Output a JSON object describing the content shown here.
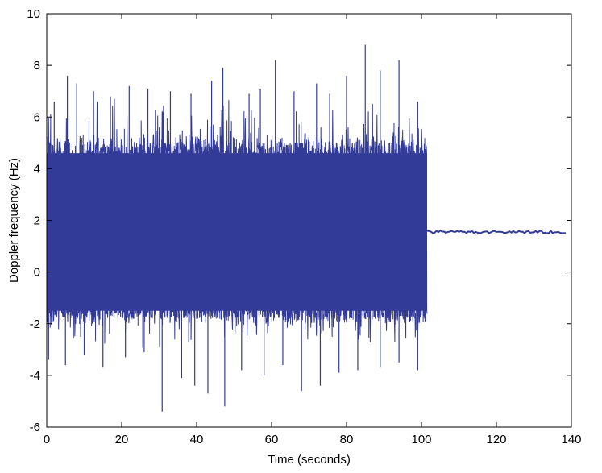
{
  "chart_data": {
    "type": "line",
    "title": "",
    "xlabel": "Time (seconds)",
    "ylabel": "Doppler frequency (Hz)",
    "xlim": [
      0,
      140
    ],
    "ylim": [
      -6,
      10
    ],
    "xticks": [
      0,
      20,
      40,
      60,
      80,
      100,
      120,
      140
    ],
    "yticks": [
      -6,
      -4,
      -2,
      0,
      2,
      4,
      6,
      8,
      10
    ],
    "xtick_labels": [
      "0",
      "20",
      "40",
      "60",
      "80",
      "100",
      "120",
      "140"
    ],
    "ytick_labels": [
      "-6",
      "-4",
      "-2",
      "0",
      "2",
      "4",
      "6",
      "8",
      "10"
    ],
    "grid": false,
    "legend": "none",
    "series": [
      {
        "color": "#333b99",
        "segments": [
          {
            "kind": "noisy-band",
            "x_start": 0,
            "x_end": 101.5,
            "y_mean": 1.6,
            "band_min": -1.8,
            "band_max": 4.9,
            "typical_peak_max": 6.8,
            "typical_peak_min": -3.0,
            "peaks": [
              {
                "x": 2.0,
                "y": 6.6
              },
              {
                "x": 5.5,
                "y": 7.6
              },
              {
                "x": 8.0,
                "y": 7.3
              },
              {
                "x": 12.5,
                "y": 7.0
              },
              {
                "x": 17.0,
                "y": 6.8
              },
              {
                "x": 22.0,
                "y": 7.2
              },
              {
                "x": 27.0,
                "y": 7.1
              },
              {
                "x": 33.0,
                "y": 7.0
              },
              {
                "x": 38.5,
                "y": 6.9
              },
              {
                "x": 44.0,
                "y": 7.4
              },
              {
                "x": 47.0,
                "y": 7.9
              },
              {
                "x": 54.0,
                "y": 6.9
              },
              {
                "x": 57.0,
                "y": 7.1
              },
              {
                "x": 61.0,
                "y": 8.2
              },
              {
                "x": 66.0,
                "y": 7.0
              },
              {
                "x": 72.0,
                "y": 7.3
              },
              {
                "x": 75.5,
                "y": 6.9
              },
              {
                "x": 80.0,
                "y": 7.6
              },
              {
                "x": 85.0,
                "y": 8.8
              },
              {
                "x": 89.0,
                "y": 7.8
              },
              {
                "x": 94.0,
                "y": 8.2
              },
              {
                "x": 99.0,
                "y": 6.6
              }
            ],
            "troughs": [
              {
                "x": 0.5,
                "y": -3.4
              },
              {
                "x": 5.0,
                "y": -3.6
              },
              {
                "x": 10.0,
                "y": -3.2
              },
              {
                "x": 15.0,
                "y": -3.7
              },
              {
                "x": 21.0,
                "y": -3.3
              },
              {
                "x": 26.0,
                "y": -3.1
              },
              {
                "x": 30.8,
                "y": -5.4
              },
              {
                "x": 36.0,
                "y": -4.1
              },
              {
                "x": 39.5,
                "y": -4.4
              },
              {
                "x": 43.0,
                "y": -4.7
              },
              {
                "x": 47.5,
                "y": -5.2
              },
              {
                "x": 52.0,
                "y": -3.8
              },
              {
                "x": 58.0,
                "y": -4.0
              },
              {
                "x": 63.0,
                "y": -3.6
              },
              {
                "x": 68.0,
                "y": -4.6
              },
              {
                "x": 73.0,
                "y": -4.4
              },
              {
                "x": 78.0,
                "y": -3.9
              },
              {
                "x": 83.0,
                "y": -3.8
              },
              {
                "x": 89.0,
                "y": -3.7
              },
              {
                "x": 94.0,
                "y": -3.5
              },
              {
                "x": 99.0,
                "y": -3.8
              }
            ]
          },
          {
            "kind": "flat",
            "x_start": 101.5,
            "x_end": 138.5,
            "y_value": 1.55,
            "jitter": 0.05
          }
        ]
      }
    ]
  }
}
